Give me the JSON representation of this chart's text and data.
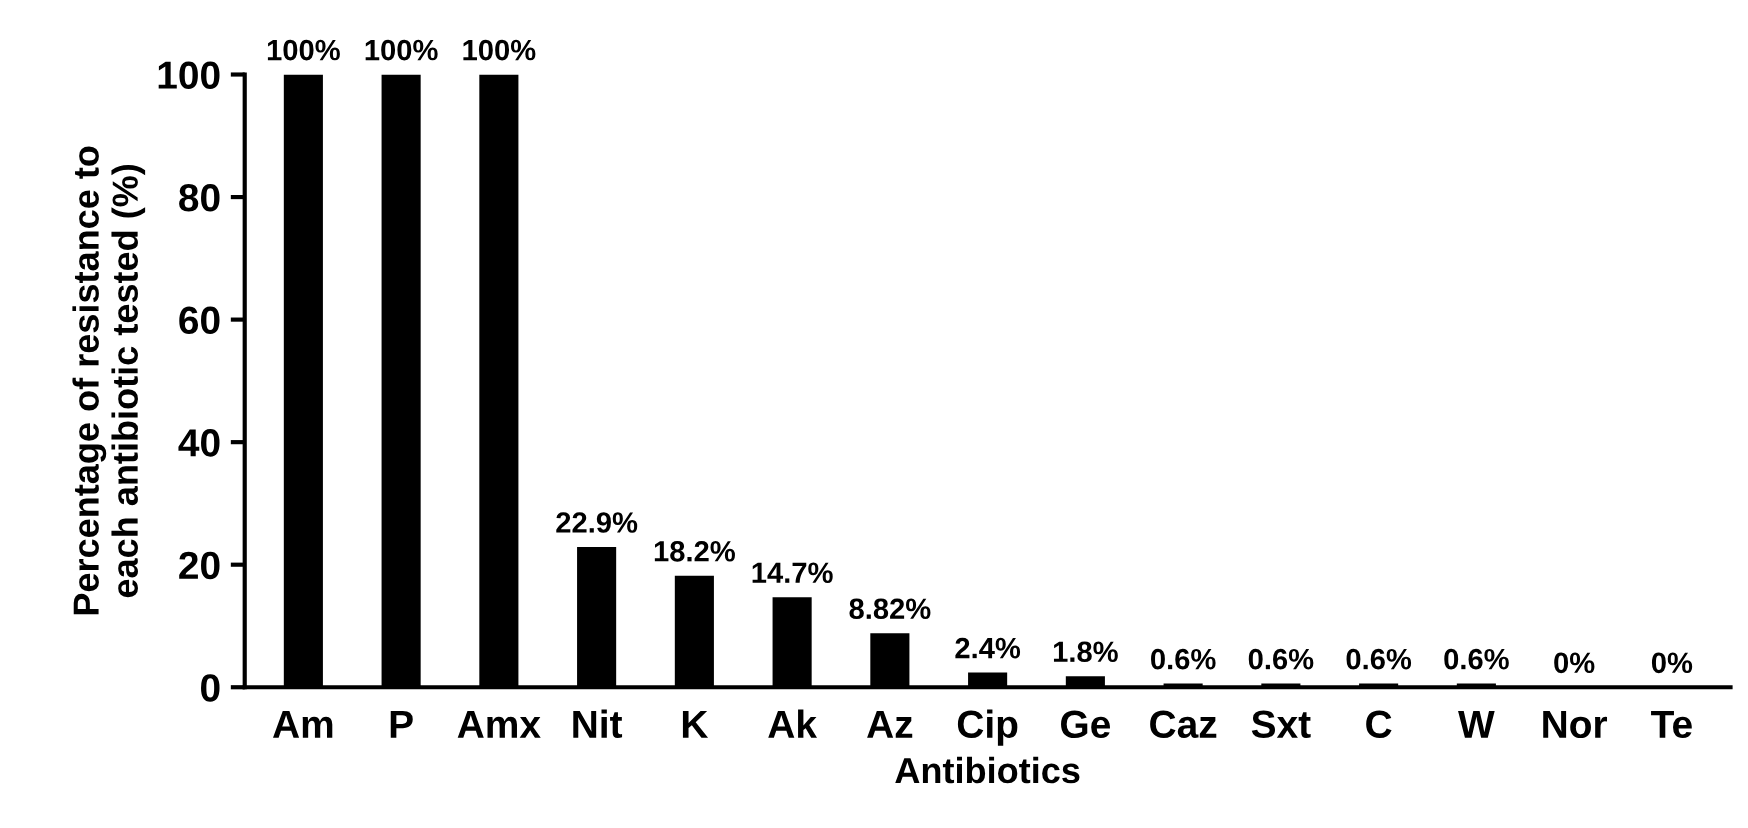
{
  "chart_data": {
    "type": "bar",
    "xlabel": "Antibiotics",
    "ylabel": "Percentage of resistance to\neach antibiotic tested (%)",
    "categories": [
      "Am",
      "P",
      "Amx",
      "Nit",
      "K",
      "Ak",
      "Az",
      "Cip",
      "Ge",
      "Caz",
      "Sxt",
      "C",
      "W",
      "Nor",
      "Te"
    ],
    "values": [
      100,
      100,
      100,
      22.9,
      18.2,
      14.7,
      8.82,
      2.4,
      1.8,
      0.6,
      0.6,
      0.6,
      0.6,
      0,
      0
    ],
    "value_labels": [
      "100%",
      "100%",
      "100%",
      "22.9%",
      "18.2%",
      "14.7%",
      "8.82%",
      "2.4%",
      "1.8%",
      "0.6%",
      "0.6%",
      "0.6%",
      "0.6%",
      "0%",
      "0%"
    ],
    "color": "#000000",
    "ylim": [
      0,
      100
    ],
    "yticks": [
      0,
      20,
      40,
      60,
      80,
      100
    ],
    "grid": false,
    "legend": false
  }
}
